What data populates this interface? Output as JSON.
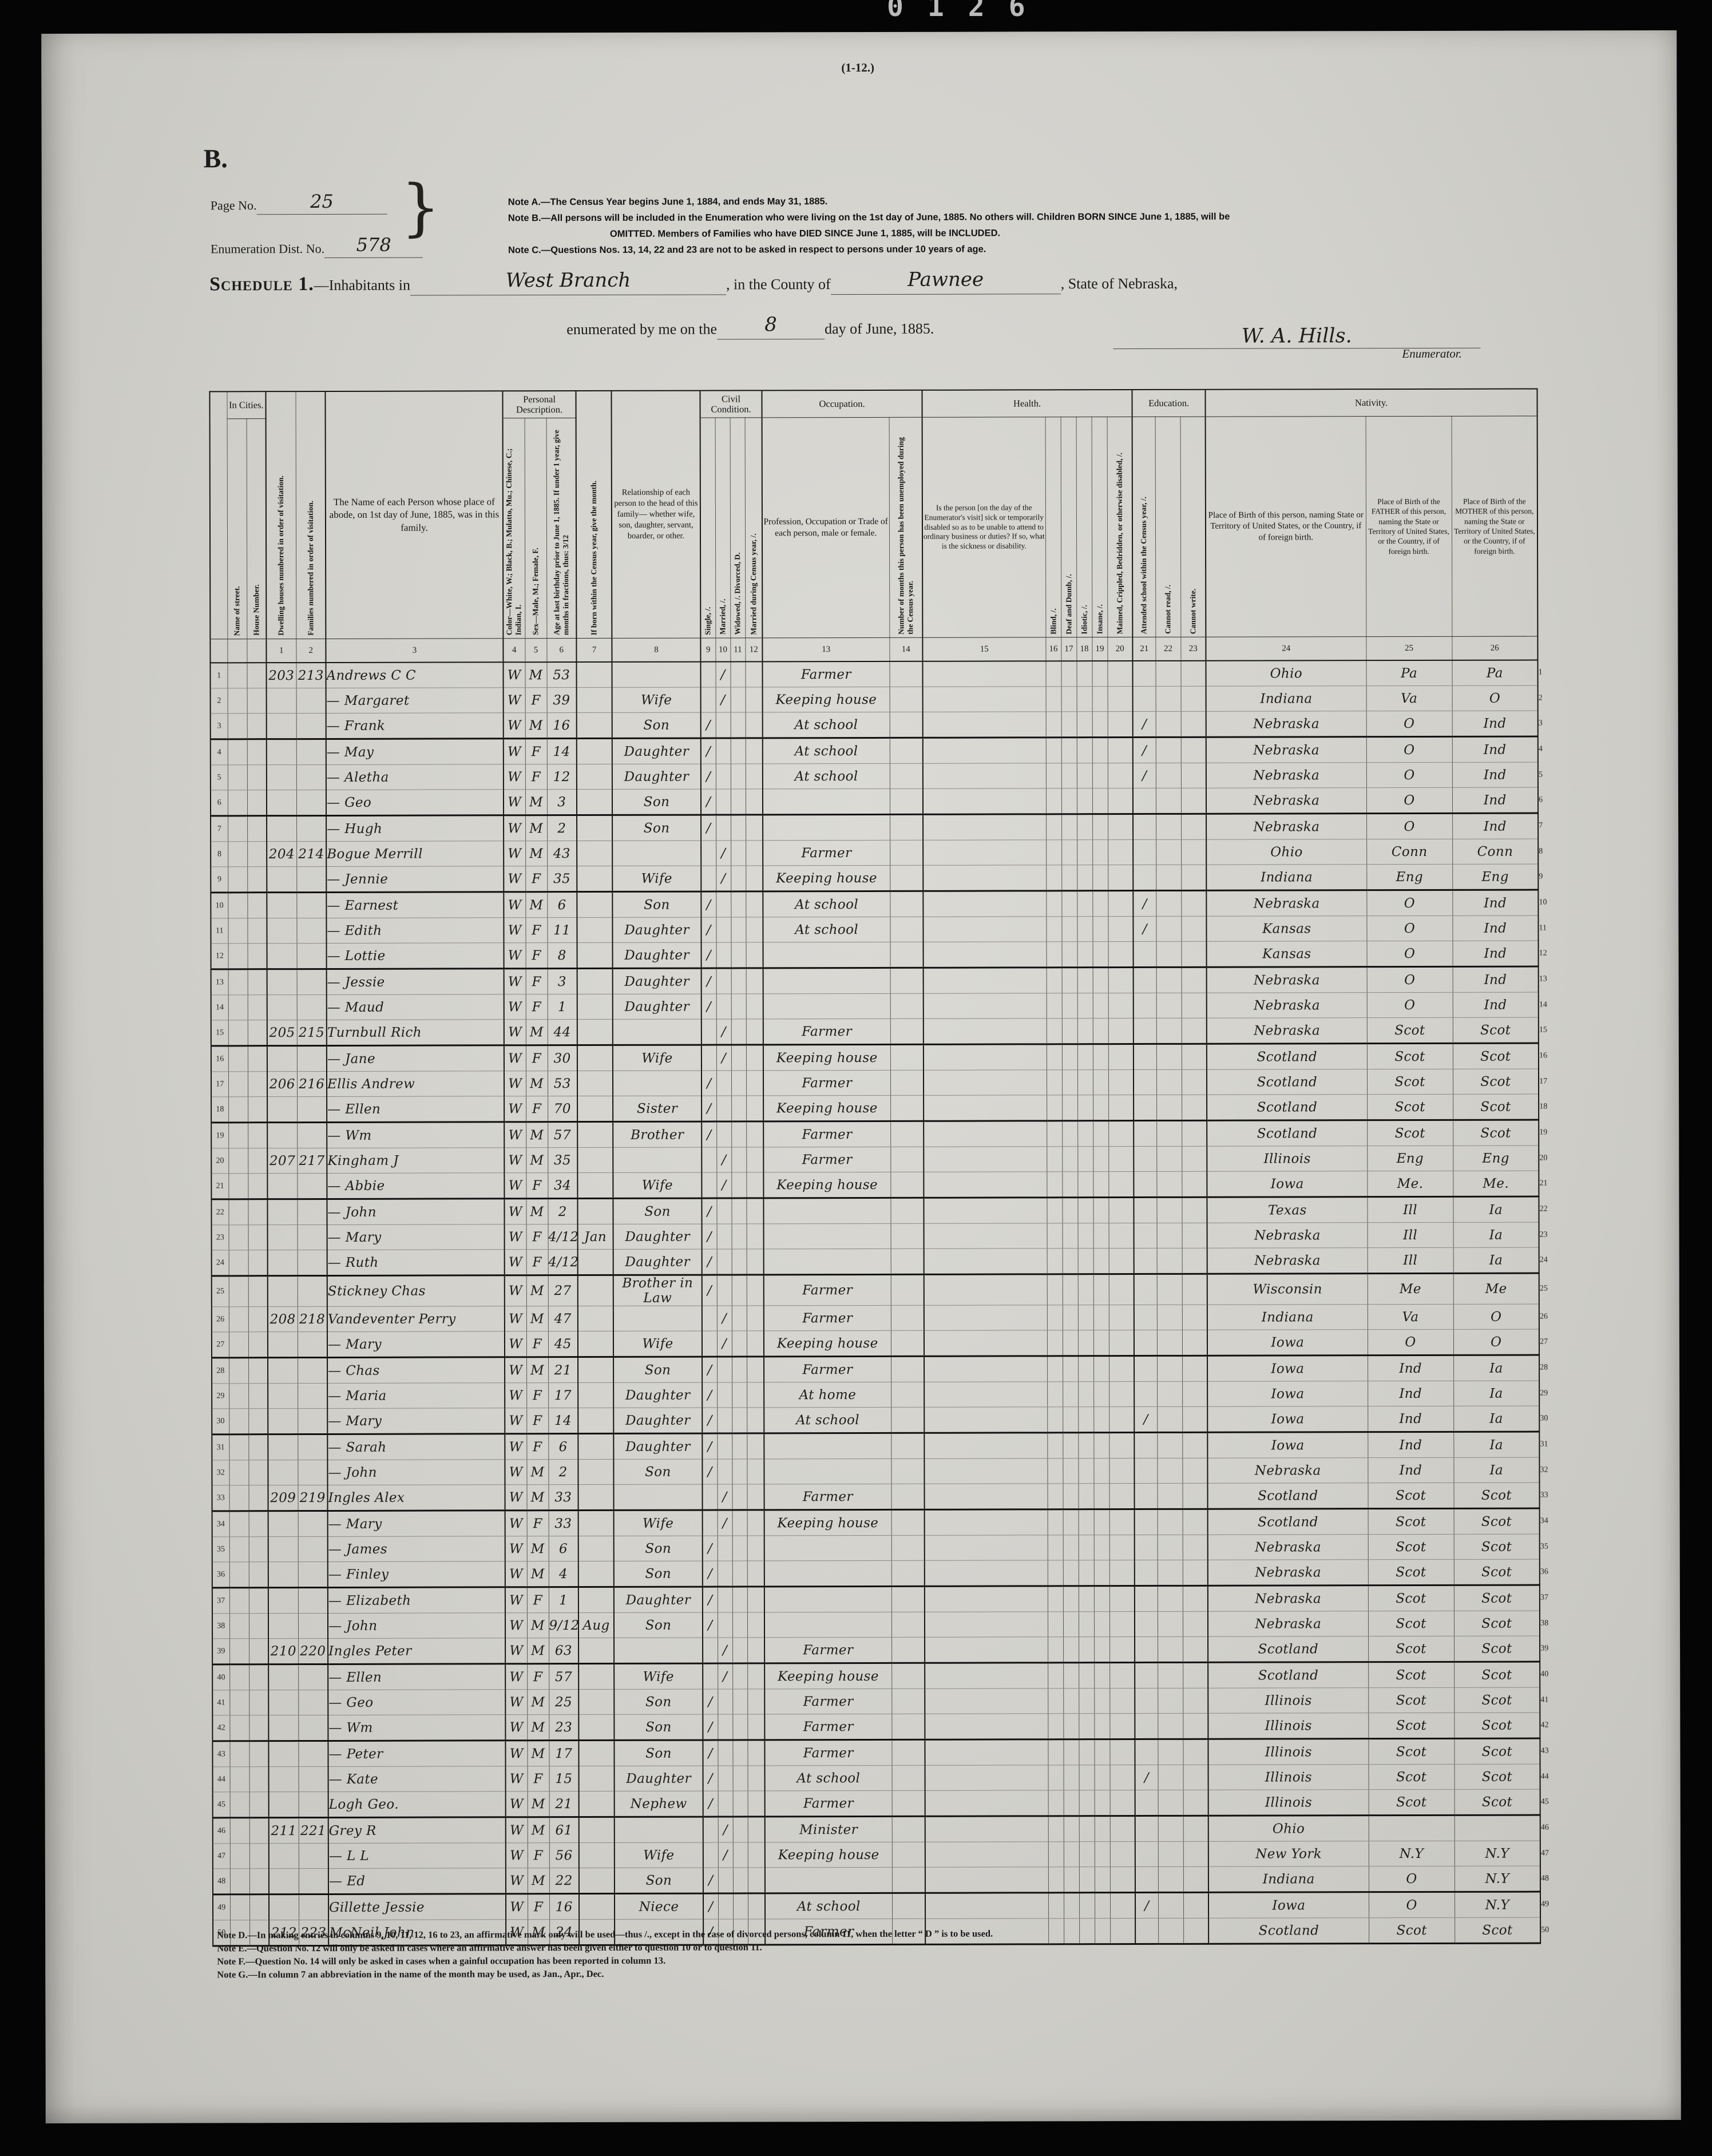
{
  "scan": {
    "top_digits": "0126"
  },
  "form": {
    "sheet_ref": "(1-12.)",
    "series": "B.",
    "page_no_label": "Page No.",
    "page_no": "25",
    "enum_dist_label": "Enumeration Dist. No.",
    "enum_dist_no": "578",
    "brace": "}",
    "notes": [
      "Note A.—The Census Year begins June 1, 1884, and ends May 31, 1885.",
      "Note B.—All persons will be included in the Enumeration who were living on the 1st day of June, 1885.  No others will.  Children BORN SINCE June 1, 1885, will be",
      "OMITTED.  Members of Families who have DIED SINCE June 1, 1885, will be INCLUDED.",
      "Note C.—Questions Nos. 13, 14, 22 and 23 are not to be asked in respect to persons under 10 years of age."
    ],
    "schedule_title": "Schedule 1.",
    "inhabitants_label": "—Inhabitants in",
    "place_value": "West Branch",
    "county_label": ", in the County of",
    "county_value": "Pawnee",
    "state_label": ", State of Nebraska,",
    "enumerated_label": "enumerated by me on the",
    "day_value": "8",
    "date_label": "day of June, 1885.",
    "signature": "W. A. Hills.",
    "enumerator_label": "Enumerator."
  },
  "table": {
    "groups": {
      "in_cities": "In Cities.",
      "personal": "Personal\nDescription.",
      "civil": "Civil\nCondition.",
      "occupation": "Occupation.",
      "health": "Health.",
      "education": "Education.",
      "nativity": "Nativity."
    },
    "cols": {
      "street": "Name of street.",
      "house": "House Number.",
      "c1": "Dwelling houses numbered in order of visitation.",
      "c2": "Families numbered in order of visitation.",
      "c3": "The Name of each Person  whose place of abode, on 1st day of June, 1885, was in this family.",
      "c4": "Color—White, W.; Black, B.; Mulatto, Mu.; Chinese, C.; Indian, I.",
      "c5": "Sex—Male, M.; Female, F.",
      "c6": "Age at last birthday prior to June 1, 1885.  If under 1 year, give months in fractions, thus: 3/12",
      "c7": "If born within the Census year, give the month.",
      "c8": "Relationship of each person to the head of this family— whether wife, son, daughter, servant, boarder, or other.",
      "c9": "Single, /.",
      "c10": "Married, /.",
      "c11": "Widowed, /.  Divorced, D.",
      "c12": "Married during Census year, /.",
      "c13": "Profession, Occupation or Trade of each person, male or female.",
      "c14": "Number of months this person has been unemployed during the Census year.",
      "c15": "Is the person [on the day of the Enumerator's visit] sick or temporarily disabled so as to be unable to attend to ordinary business or duties?  If so, what is the sickness or disability.",
      "c16": "Blind, /.",
      "c17": "Deaf and Dumb, /.",
      "c18": "Idiotic, /.",
      "c19": "Insane, /.",
      "c20": "Maimed, Crippled, Bedridden, or otherwise disabled, /.",
      "c21": "Attended school within the Census year, /.",
      "c22": "Cannot read, /.",
      "c23": "Cannot write.",
      "c24": "Place of Birth of this person, naming State or Territory of United States, or the Country, if of foreign birth.",
      "c25": "Place of Birth of the FATHER of this person, naming the State or Territory of United States, or the Country, if of foreign birth.",
      "c26": "Place of Birth of the MOTHER of this person, naming the State or Territory of United States, or the Country, if of foreign birth."
    },
    "col_numbers": [
      "1",
      "2",
      "3",
      "4",
      "5",
      "6",
      "7",
      "8",
      "9",
      "10",
      "11",
      "12",
      "13",
      "14",
      "15",
      "16",
      "17",
      "18",
      "19",
      "20",
      "21",
      "22",
      "23",
      "24",
      "25",
      "26"
    ],
    "rows": [
      {
        "no": 1,
        "dw": "203",
        "fm": "213",
        "nm": "Andrews C C",
        "cl": "W",
        "sx": "M",
        "ag": "53",
        "mr": 1,
        "oc": "Farmer",
        "bp": "Ohio",
        "fb": "Pa",
        "mb": "Pa"
      },
      {
        "no": 2,
        "nm": "— Margaret",
        "cl": "W",
        "sx": "F",
        "ag": "39",
        "rl": "Wife",
        "mr": 1,
        "oc": "Keeping house",
        "bp": "Indiana",
        "fb": "Va",
        "mb": "O"
      },
      {
        "no": 3,
        "nm": "— Frank",
        "cl": "W",
        "sx": "M",
        "ag": "16",
        "rl": "Son",
        "sg": 1,
        "oc": "At school",
        "sc": 1,
        "bp": "Nebraska",
        "fb": "O",
        "mb": "Ind"
      },
      {
        "no": 4,
        "nm": "— May",
        "cl": "W",
        "sx": "F",
        "ag": "14",
        "rl": "Daughter",
        "sg": 1,
        "oc": "At school",
        "sc": 1,
        "bp": "Nebraska",
        "fb": "O",
        "mb": "Ind"
      },
      {
        "no": 5,
        "nm": "— Aletha",
        "cl": "W",
        "sx": "F",
        "ag": "12",
        "rl": "Daughter",
        "sg": 1,
        "oc": "At school",
        "sc": 1,
        "bp": "Nebraska",
        "fb": "O",
        "mb": "Ind"
      },
      {
        "no": 6,
        "nm": "— Geo",
        "cl": "W",
        "sx": "M",
        "ag": "3",
        "rl": "Son",
        "sg": 1,
        "bp": "Nebraska",
        "fb": "O",
        "mb": "Ind"
      },
      {
        "no": 7,
        "nm": "— Hugh",
        "cl": "W",
        "sx": "M",
        "ag": "2",
        "rl": "Son",
        "sg": 1,
        "bp": "Nebraska",
        "fb": "O",
        "mb": "Ind"
      },
      {
        "no": 8,
        "dw": "204",
        "fm": "214",
        "nm": "Bogue Merrill",
        "cl": "W",
        "sx": "M",
        "ag": "43",
        "mr": 1,
        "oc": "Farmer",
        "bp": "Ohio",
        "fb": "Conn",
        "mb": "Conn"
      },
      {
        "no": 9,
        "nm": "— Jennie",
        "cl": "W",
        "sx": "F",
        "ag": "35",
        "rl": "Wife",
        "mr": 1,
        "oc": "Keeping house",
        "bp": "Indiana",
        "fb": "Eng",
        "mb": "Eng"
      },
      {
        "no": 10,
        "nm": "— Earnest",
        "cl": "W",
        "sx": "M",
        "ag": "6",
        "rl": "Son",
        "sg": 1,
        "oc": "At school",
        "sc": 1,
        "bp": "Nebraska",
        "fb": "O",
        "mb": "Ind"
      },
      {
        "no": 11,
        "nm": "— Edith",
        "cl": "W",
        "sx": "F",
        "ag": "11",
        "rl": "Daughter",
        "sg": 1,
        "oc": "At school",
        "sc": 1,
        "bp": "Kansas",
        "fb": "O",
        "mb": "Ind"
      },
      {
        "no": 12,
        "nm": "— Lottie",
        "cl": "W",
        "sx": "F",
        "ag": "8",
        "rl": "Daughter",
        "sg": 1,
        "bp": "Kansas",
        "fb": "O",
        "mb": "Ind"
      },
      {
        "no": 13,
        "nm": "— Jessie",
        "cl": "W",
        "sx": "F",
        "ag": "3",
        "rl": "Daughter",
        "sg": 1,
        "bp": "Nebraska",
        "fb": "O",
        "mb": "Ind"
      },
      {
        "no": 14,
        "nm": "— Maud",
        "cl": "W",
        "sx": "F",
        "ag": "1",
        "rl": "Daughter",
        "sg": 1,
        "bp": "Nebraska",
        "fb": "O",
        "mb": "Ind"
      },
      {
        "no": 15,
        "dw": "205",
        "fm": "215",
        "nm": "Turnbull Rich",
        "cl": "W",
        "sx": "M",
        "ag": "44",
        "mr": 1,
        "oc": "Farmer",
        "bp": "Nebraska",
        "fb": "Scot",
        "mb": "Scot"
      },
      {
        "no": 16,
        "nm": "— Jane",
        "cl": "W",
        "sx": "F",
        "ag": "30",
        "rl": "Wife",
        "mr": 1,
        "oc": "Keeping house",
        "bp": "Scotland",
        "fb": "Scot",
        "mb": "Scot"
      },
      {
        "no": 17,
        "dw": "206",
        "fm": "216",
        "nm": "Ellis Andrew",
        "cl": "W",
        "sx": "M",
        "ag": "53",
        "sg": 1,
        "oc": "Farmer",
        "bp": "Scotland",
        "fb": "Scot",
        "mb": "Scot"
      },
      {
        "no": 18,
        "nm": "— Ellen",
        "cl": "W",
        "sx": "F",
        "ag": "70",
        "rl": "Sister",
        "sg": 1,
        "oc": "Keeping house",
        "bp": "Scotland",
        "fb": "Scot",
        "mb": "Scot"
      },
      {
        "no": 19,
        "nm": "— Wm",
        "cl": "W",
        "sx": "M",
        "ag": "57",
        "rl": "Brother",
        "sg": 1,
        "oc": "Farmer",
        "bp": "Scotland",
        "fb": "Scot",
        "mb": "Scot"
      },
      {
        "no": 20,
        "dw": "207",
        "fm": "217",
        "nm": "Kingham J",
        "cl": "W",
        "sx": "M",
        "ag": "35",
        "mr": 1,
        "oc": "Farmer",
        "bp": "Illinois",
        "fb": "Eng",
        "mb": "Eng"
      },
      {
        "no": 21,
        "nm": "— Abbie",
        "cl": "W",
        "sx": "F",
        "ag": "34",
        "rl": "Wife",
        "mr": 1,
        "oc": "Keeping house",
        "bp": "Iowa",
        "fb": "Me.",
        "mb": "Me."
      },
      {
        "no": 22,
        "nm": "— John",
        "cl": "W",
        "sx": "M",
        "ag": "2",
        "rl": "Son",
        "sg": 1,
        "bp": "Texas",
        "fb": "Ill",
        "mb": "Ia"
      },
      {
        "no": 23,
        "nm": "— Mary",
        "cl": "W",
        "sx": "F",
        "ag": "4/12",
        "mo": "Jan",
        "rl": "Daughter",
        "sg": 1,
        "bp": "Nebraska",
        "fb": "Ill",
        "mb": "Ia"
      },
      {
        "no": 24,
        "nm": "— Ruth",
        "cl": "W",
        "sx": "F",
        "ag": "4/12",
        "rl": "Daughter",
        "sg": 1,
        "bp": "Nebraska",
        "fb": "Ill",
        "mb": "Ia"
      },
      {
        "no": 25,
        "nm": "Stickney Chas",
        "cl": "W",
        "sx": "M",
        "ag": "27",
        "rl": "Brother in Law",
        "sg": 1,
        "oc": "Farmer",
        "bp": "Wisconsin",
        "fb": "Me",
        "mb": "Me"
      },
      {
        "no": 26,
        "dw": "208",
        "fm": "218",
        "nm": "Vandeventer Perry",
        "cl": "W",
        "sx": "M",
        "ag": "47",
        "mr": 1,
        "oc": "Farmer",
        "bp": "Indiana",
        "fb": "Va",
        "mb": "O"
      },
      {
        "no": 27,
        "nm": "— Mary",
        "cl": "W",
        "sx": "F",
        "ag": "45",
        "rl": "Wife",
        "mr": 1,
        "oc": "Keeping house",
        "bp": "Iowa",
        "fb": "O",
        "mb": "O"
      },
      {
        "no": 28,
        "nm": "— Chas",
        "cl": "W",
        "sx": "M",
        "ag": "21",
        "rl": "Son",
        "sg": 1,
        "oc": "Farmer",
        "bp": "Iowa",
        "fb": "Ind",
        "mb": "Ia"
      },
      {
        "no": 29,
        "nm": "— Maria",
        "cl": "W",
        "sx": "F",
        "ag": "17",
        "rl": "Daughter",
        "sg": 1,
        "oc": "At home",
        "bp": "Iowa",
        "fb": "Ind",
        "mb": "Ia"
      },
      {
        "no": 30,
        "nm": "— Mary",
        "cl": "W",
        "sx": "F",
        "ag": "14",
        "rl": "Daughter",
        "sg": 1,
        "oc": "At school",
        "sc": 1,
        "bp": "Iowa",
        "fb": "Ind",
        "mb": "Ia"
      },
      {
        "no": 31,
        "nm": "— Sarah",
        "cl": "W",
        "sx": "F",
        "ag": "6",
        "rl": "Daughter",
        "sg": 1,
        "bp": "Iowa",
        "fb": "Ind",
        "mb": "Ia"
      },
      {
        "no": 32,
        "nm": "— John",
        "cl": "W",
        "sx": "M",
        "ag": "2",
        "rl": "Son",
        "sg": 1,
        "bp": "Nebraska",
        "fb": "Ind",
        "mb": "Ia"
      },
      {
        "no": 33,
        "dw": "209",
        "fm": "219",
        "nm": "Ingles Alex",
        "cl": "W",
        "sx": "M",
        "ag": "33",
        "mr": 1,
        "oc": "Farmer",
        "bp": "Scotland",
        "fb": "Scot",
        "mb": "Scot"
      },
      {
        "no": 34,
        "nm": "— Mary",
        "cl": "W",
        "sx": "F",
        "ag": "33",
        "rl": "Wife",
        "mr": 1,
        "oc": "Keeping house",
        "bp": "Scotland",
        "fb": "Scot",
        "mb": "Scot"
      },
      {
        "no": 35,
        "nm": "— James",
        "cl": "W",
        "sx": "M",
        "ag": "6",
        "rl": "Son",
        "sg": 1,
        "bp": "Nebraska",
        "fb": "Scot",
        "mb": "Scot"
      },
      {
        "no": 36,
        "nm": "— Finley",
        "cl": "W",
        "sx": "M",
        "ag": "4",
        "rl": "Son",
        "sg": 1,
        "bp": "Nebraska",
        "fb": "Scot",
        "mb": "Scot"
      },
      {
        "no": 37,
        "nm": "— Elizabeth",
        "cl": "W",
        "sx": "F",
        "ag": "1",
        "rl": "Daughter",
        "sg": 1,
        "bp": "Nebraska",
        "fb": "Scot",
        "mb": "Scot"
      },
      {
        "no": 38,
        "nm": "— John",
        "cl": "W",
        "sx": "M",
        "ag": "9/12",
        "mo": "Aug",
        "rl": "Son",
        "sg": 1,
        "bp": "Nebraska",
        "fb": "Scot",
        "mb": "Scot"
      },
      {
        "no": 39,
        "dw": "210",
        "fm": "220",
        "nm": "Ingles Peter",
        "cl": "W",
        "sx": "M",
        "ag": "63",
        "mr": 1,
        "oc": "Farmer",
        "bp": "Scotland",
        "fb": "Scot",
        "mb": "Scot"
      },
      {
        "no": 40,
        "nm": "— Ellen",
        "cl": "W",
        "sx": "F",
        "ag": "57",
        "rl": "Wife",
        "mr": 1,
        "oc": "Keeping house",
        "bp": "Scotland",
        "fb": "Scot",
        "mb": "Scot"
      },
      {
        "no": 41,
        "nm": "— Geo",
        "cl": "W",
        "sx": "M",
        "ag": "25",
        "rl": "Son",
        "sg": 1,
        "oc": "Farmer",
        "bp": "Illinois",
        "fb": "Scot",
        "mb": "Scot"
      },
      {
        "no": 42,
        "nm": "— Wm",
        "cl": "W",
        "sx": "M",
        "ag": "23",
        "rl": "Son",
        "sg": 1,
        "oc": "Farmer",
        "bp": "Illinois",
        "fb": "Scot",
        "mb": "Scot"
      },
      {
        "no": 43,
        "nm": "— Peter",
        "cl": "W",
        "sx": "M",
        "ag": "17",
        "rl": "Son",
        "sg": 1,
        "oc": "Farmer",
        "bp": "Illinois",
        "fb": "Scot",
        "mb": "Scot"
      },
      {
        "no": 44,
        "nm": "— Kate",
        "cl": "W",
        "sx": "F",
        "ag": "15",
        "rl": "Daughter",
        "sg": 1,
        "oc": "At school",
        "sc": 1,
        "bp": "Illinois",
        "fb": "Scot",
        "mb": "Scot"
      },
      {
        "no": 45,
        "nm": "Logh Geo.",
        "cl": "W",
        "sx": "M",
        "ag": "21",
        "rl": "Nephew",
        "sg": 1,
        "oc": "Farmer",
        "bp": "Illinois",
        "fb": "Scot",
        "mb": "Scot"
      },
      {
        "no": 46,
        "dw": "211",
        "fm": "221",
        "nm": "Grey R",
        "cl": "W",
        "sx": "M",
        "ag": "61",
        "mr": 1,
        "oc": "Minister",
        "bp": "Ohio"
      },
      {
        "no": 47,
        "nm": "— L L",
        "cl": "W",
        "sx": "F",
        "ag": "56",
        "rl": "Wife",
        "mr": 1,
        "oc": "Keeping house",
        "bp": "New York",
        "fb": "N.Y",
        "mb": "N.Y"
      },
      {
        "no": 48,
        "nm": "— Ed",
        "cl": "W",
        "sx": "M",
        "ag": "22",
        "rl": "Son",
        "sg": 1,
        "bp": "Indiana",
        "fb": "O",
        "mb": "N.Y"
      },
      {
        "no": 49,
        "nm": "Gillette Jessie",
        "cl": "W",
        "sx": "F",
        "ag": "16",
        "rl": "Niece",
        "sg": 1,
        "oc": "At school",
        "sc": 1,
        "bp": "Iowa",
        "fb": "O",
        "mb": "N.Y"
      },
      {
        "no": 50,
        "dw": "212",
        "fm": "223",
        "nm": "McNeil John",
        "cl": "W",
        "sx": "M",
        "ag": "24",
        "sg": 1,
        "oc": "Farmer",
        "bp": "Scotland",
        "fb": "Scot",
        "mb": "Scot"
      }
    ]
  },
  "footnotes": [
    "Note D.—In making entries in columns 9, 10, 11, 12, 16 to 23, an affirmative mark only will be used—thus /., except in the case of divorced persons, column 11, when the letter “ D ” is to be used.",
    "Note E.—Question No. 12 will only be asked in cases where an affirmative answer has been given either to question 10 or to question 11.",
    "Note F.—Question No. 14 will only be asked in cases when a gainful occupation has been reported in column 13.",
    "Note G.—In column 7 an abbreviation in the name of the month may be used, as Jan., Apr., Dec."
  ]
}
